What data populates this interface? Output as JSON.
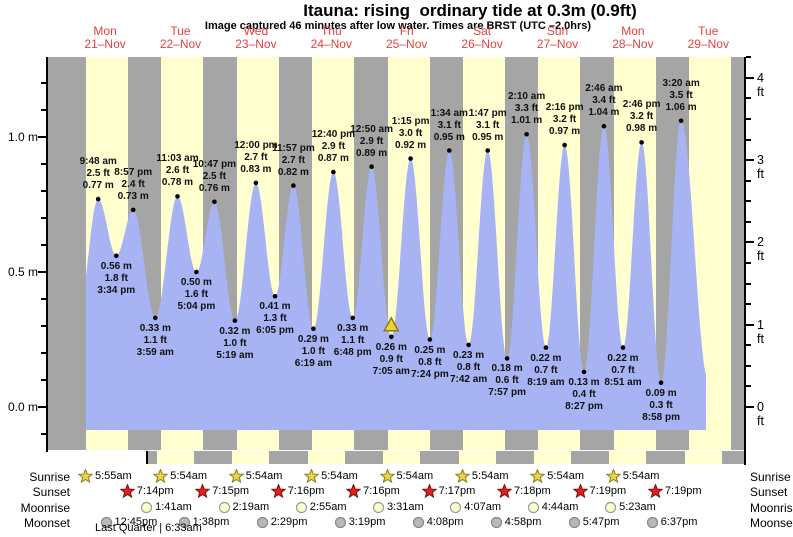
{
  "title": "Itauna: rising  ordinary tide at 0.3m (0.9ft)",
  "subtitle": "Image captured 46 minutes after low water. Times are BRST (UTC –2.0hrs)",
  "days": [
    {
      "name": "Mon",
      "date": "21–Nov"
    },
    {
      "name": "Tue",
      "date": "22–Nov"
    },
    {
      "name": "Wed",
      "date": "23–Nov"
    },
    {
      "name": "Thu",
      "date": "24–Nov"
    },
    {
      "name": "Fri",
      "date": "25–Nov"
    },
    {
      "name": "Sat",
      "date": "26–Nov"
    },
    {
      "name": "Sun",
      "date": "27–Nov"
    },
    {
      "name": "Mon",
      "date": "28–Nov"
    },
    {
      "name": "Tue",
      "date": "29–Nov"
    }
  ],
  "y_axis": {
    "left": [
      {
        "label": "1.0 m",
        "value": 1.0
      },
      {
        "label": "0.5 m",
        "value": 0.5
      },
      {
        "label": "0.0 m",
        "value": 0.0
      }
    ],
    "right": [
      {
        "label": "4 ft",
        "value": 4
      },
      {
        "label": "3 ft",
        "value": 3
      },
      {
        "label": "2 ft",
        "value": 2
      },
      {
        "label": "1 ft",
        "value": 1
      },
      {
        "label": "0 ft",
        "value": 0
      }
    ]
  },
  "chart_data": {
    "type": "area",
    "title": "Tide height over time",
    "ylabel_left": "meters",
    "ylabel_right": "feet",
    "ylim_m": [
      -0.17,
      1.3
    ],
    "legend": "none",
    "grid": false,
    "extremes": [
      {
        "d": 0,
        "kind": "high",
        "time": "9:48 am",
        "ft": "2.5 ft",
        "m": "0.77 m",
        "value_m": 0.77,
        "value_ft": 2.5
      },
      {
        "d": 0,
        "kind": "low",
        "time": "3:34 pm",
        "ft": "1.8 ft",
        "m": "0.56 m",
        "value_m": 0.56,
        "value_ft": 1.8
      },
      {
        "d": 0,
        "kind": "high",
        "time": "8:57 pm",
        "ft": "2.4 ft",
        "m": "0.73 m",
        "value_m": 0.73,
        "value_ft": 2.4
      },
      {
        "d": 1,
        "kind": "low",
        "time": "3:59 am",
        "ft": "1.1 ft",
        "m": "0.33 m",
        "value_m": 0.33,
        "value_ft": 1.1
      },
      {
        "d": 1,
        "kind": "high",
        "time": "11:03 am",
        "ft": "2.6 ft",
        "m": "0.78 m",
        "value_m": 0.78,
        "value_ft": 2.6
      },
      {
        "d": 1,
        "kind": "low",
        "time": "5:04 pm",
        "ft": "1.6 ft",
        "m": "0.50 m",
        "value_m": 0.5,
        "value_ft": 1.6
      },
      {
        "d": 1,
        "kind": "high",
        "time": "10:47 pm",
        "ft": "2.5 ft",
        "m": "0.76 m",
        "value_m": 0.76,
        "value_ft": 2.5
      },
      {
        "d": 2,
        "kind": "low",
        "time": "5:19 am",
        "ft": "1.0 ft",
        "m": "0.32 m",
        "value_m": 0.32,
        "value_ft": 1.0
      },
      {
        "d": 2,
        "kind": "high",
        "time": "12:00 pm",
        "ft": "2.7 ft",
        "m": "0.83 m",
        "value_m": 0.83,
        "value_ft": 2.7
      },
      {
        "d": 2,
        "kind": "low",
        "time": "6:05 pm",
        "ft": "1.3 ft",
        "m": "0.41 m",
        "value_m": 0.41,
        "value_ft": 1.3
      },
      {
        "d": 2,
        "kind": "high",
        "time": "11:57 pm",
        "ft": "2.7 ft",
        "m": "0.82 m",
        "value_m": 0.82,
        "value_ft": 2.7
      },
      {
        "d": 3,
        "kind": "low",
        "time": "6:19 am",
        "ft": "1.0 ft",
        "m": "0.29 m",
        "value_m": 0.29,
        "value_ft": 1.0
      },
      {
        "d": 3,
        "kind": "high",
        "time": "12:40 pm",
        "ft": "2.9 ft",
        "m": "0.87 m",
        "value_m": 0.87,
        "value_ft": 2.9
      },
      {
        "d": 3,
        "kind": "low",
        "time": "6:48 pm",
        "ft": "1.1 ft",
        "m": "0.33 m",
        "value_m": 0.33,
        "value_ft": 1.1
      },
      {
        "d": 4,
        "kind": "high",
        "time": "12:50 am",
        "ft": "2.9 ft",
        "m": "0.89 m",
        "value_m": 0.89,
        "value_ft": 2.9
      },
      {
        "d": 4,
        "kind": "low",
        "time": "7:05 am",
        "ft": "0.9 ft",
        "m": "0.26 m",
        "value_m": 0.26,
        "value_ft": 0.9,
        "current": true
      },
      {
        "d": 4,
        "kind": "high",
        "time": "1:15 pm",
        "ft": "3.0 ft",
        "m": "0.92 m",
        "value_m": 0.92,
        "value_ft": 3.0
      },
      {
        "d": 4,
        "kind": "low",
        "time": "7:24 pm",
        "ft": "0.8 ft",
        "m": "0.25 m",
        "value_m": 0.25,
        "value_ft": 0.8
      },
      {
        "d": 5,
        "kind": "high",
        "time": "1:34 am",
        "ft": "3.1 ft",
        "m": "0.95 m",
        "value_m": 0.95,
        "value_ft": 3.1
      },
      {
        "d": 5,
        "kind": "low",
        "time": "7:42 am",
        "ft": "0.8 ft",
        "m": "0.23 m",
        "value_m": 0.23,
        "value_ft": 0.8
      },
      {
        "d": 5,
        "kind": "high",
        "time": "1:47 pm",
        "ft": "3.1 ft",
        "m": "0.95 m",
        "value_m": 0.95,
        "value_ft": 3.1
      },
      {
        "d": 5,
        "kind": "low",
        "time": "7:57 pm",
        "ft": "0.6 ft",
        "m": "0.18 m",
        "value_m": 0.18,
        "value_ft": 0.6
      },
      {
        "d": 6,
        "kind": "high",
        "time": "2:10 am",
        "ft": "3.3 ft",
        "m": "1.01 m",
        "value_m": 1.01,
        "value_ft": 3.3
      },
      {
        "d": 6,
        "kind": "low",
        "time": "8:19 am",
        "ft": "0.7 ft",
        "m": "0.22 m",
        "value_m": 0.22,
        "value_ft": 0.7
      },
      {
        "d": 6,
        "kind": "high",
        "time": "2:16 pm",
        "ft": "3.2 ft",
        "m": "0.97 m",
        "value_m": 0.97,
        "value_ft": 3.2
      },
      {
        "d": 6,
        "kind": "low",
        "time": "8:27 pm",
        "ft": "0.4 ft",
        "m": "0.13 m",
        "value_m": 0.13,
        "value_ft": 0.4
      },
      {
        "d": 7,
        "kind": "high",
        "time": "2:46 am",
        "ft": "3.4 ft",
        "m": "1.04 m",
        "value_m": 1.04,
        "value_ft": 3.4
      },
      {
        "d": 7,
        "kind": "low",
        "time": "8:51 am",
        "ft": "0.7 ft",
        "m": "0.22 m",
        "value_m": 0.22,
        "value_ft": 0.7
      },
      {
        "d": 7,
        "kind": "high",
        "time": "2:46 pm",
        "ft": "3.2 ft",
        "m": "0.98 m",
        "value_m": 0.98,
        "value_ft": 3.2
      },
      {
        "d": 7,
        "kind": "low",
        "time": "8:58 pm",
        "ft": "0.3 ft",
        "m": "0.09 m",
        "value_m": 0.09,
        "value_ft": 0.3
      },
      {
        "d": 8,
        "kind": "high",
        "time": "3:20 am",
        "ft": "3.5 ft",
        "m": "1.06 m",
        "value_m": 1.06,
        "value_ft": 3.5
      }
    ]
  },
  "astro": {
    "rows": [
      "Sunrise",
      "Sunset",
      "Moonrise",
      "Moonset"
    ],
    "sunrise": [
      {
        "d": 0,
        "time": "5:55am"
      },
      {
        "d": 1,
        "time": "5:54am"
      },
      {
        "d": 2,
        "time": "5:54am"
      },
      {
        "d": 3,
        "time": "5:54am"
      },
      {
        "d": 4,
        "time": "5:54am"
      },
      {
        "d": 5,
        "time": "5:54am"
      },
      {
        "d": 6,
        "time": "5:54am"
      },
      {
        "d": 7,
        "time": "5:54am"
      }
    ],
    "sunset": [
      {
        "d": 0,
        "time": "7:14pm"
      },
      {
        "d": 1,
        "time": "7:15pm"
      },
      {
        "d": 2,
        "time": "7:16pm"
      },
      {
        "d": 3,
        "time": "7:16pm"
      },
      {
        "d": 4,
        "time": "7:17pm"
      },
      {
        "d": 5,
        "time": "7:18pm"
      },
      {
        "d": 6,
        "time": "7:19pm"
      },
      {
        "d": 7,
        "time": "7:19pm"
      }
    ],
    "moonrise": [
      {
        "d": 1,
        "time": "1:41am"
      },
      {
        "d": 2,
        "time": "2:19am"
      },
      {
        "d": 3,
        "time": "2:55am"
      },
      {
        "d": 4,
        "time": "3:31am"
      },
      {
        "d": 5,
        "time": "4:07am"
      },
      {
        "d": 6,
        "time": "4:44am"
      },
      {
        "d": 7,
        "time": "5:23am"
      }
    ],
    "moonset": [
      {
        "d": 0,
        "time": "12:45pm"
      },
      {
        "d": 1,
        "time": "1:38pm"
      },
      {
        "d": 2,
        "time": "2:29pm"
      },
      {
        "d": 3,
        "time": "3:19pm"
      },
      {
        "d": 4,
        "time": "4:08pm"
      },
      {
        "d": 5,
        "time": "4:58pm"
      },
      {
        "d": 6,
        "time": "5:47pm"
      },
      {
        "d": 7,
        "time": "6:37pm"
      }
    ],
    "footer": "Last Quarter | 6:33am"
  },
  "colors": {
    "band_day": "#ffffcf",
    "band_night": "#a5a5a5",
    "tide_fill": "#a7b3f3",
    "day_label_red": "#e8403d",
    "sunrise_star": "#e9d34b",
    "sunrise_star_stroke": "#8a7a1a",
    "sunset_star": "#dd2020",
    "sunset_star_stroke": "#7a1010",
    "moonrise_fill": "#ffffcc",
    "moonrise_stroke": "#999999",
    "moonset_fill": "#b9b9b9",
    "moonset_stroke": "#888888",
    "marker_fill": "#f0d22e",
    "marker_stroke": "#8a7a1a"
  }
}
